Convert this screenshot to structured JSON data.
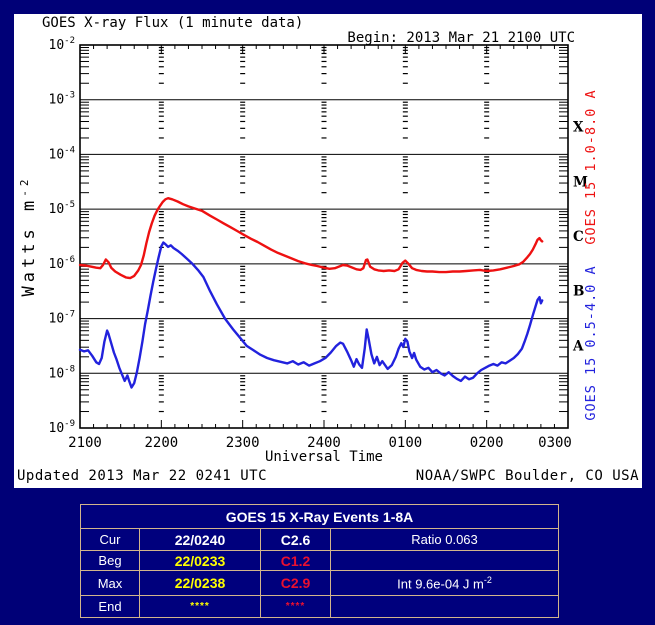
{
  "colors": {
    "page_bg": "#000077",
    "panel_bg": "#ffffff",
    "axis": "#000000",
    "long_channel_red": "#ee1111",
    "short_channel_blue": "#2222dd",
    "table_border_tan": "#d2b48c",
    "table_bg": "#00007d",
    "event_time_yellow": "#ffff00",
    "event_class_red": "#ea1030",
    "table_text_white": "#ffffff"
  },
  "chart_data": {
    "type": "line",
    "title": "GOES X-ray Flux (1 minute data)",
    "begin_label": "Begin: 2013 Mar 21 2100 UTC",
    "xlabel": "Universal Time",
    "ylabel_main": "Watts m",
    "ylabel_exp": "-2",
    "y_unit": "W m^-2, log scale",
    "x_tick_labels": [
      "2100",
      "2200",
      "2300",
      "2400",
      "0100",
      "0200",
      "0300"
    ],
    "x_total_minutes": 360,
    "y_log_max": -2,
    "y_log_min": -9,
    "y_exponents": [
      -2,
      -3,
      -4,
      -5,
      -6,
      -7,
      -8,
      -9
    ],
    "grid": "horizontal solid decade lines, dashed vertical hour lines",
    "flare_class_letters": [
      {
        "label": "X",
        "log_mid": -3.5
      },
      {
        "label": "M",
        "log_mid": -4.5
      },
      {
        "label": "C",
        "log_mid": -5.5
      },
      {
        "label": "B",
        "log_mid": -6.5
      },
      {
        "label": "A",
        "log_mid": -7.5
      }
    ],
    "series": [
      {
        "name": "GOES 15 1.0-8.0 A",
        "color": "#ee1111",
        "points_minutes_vs_log10flux": [
          [
            0,
            -6.02
          ],
          [
            4,
            -6.03
          ],
          [
            8,
            -6.05
          ],
          [
            12,
            -6.07
          ],
          [
            15,
            -6.08
          ],
          [
            17,
            -6.02
          ],
          [
            19,
            -5.92
          ],
          [
            21,
            -5.97
          ],
          [
            23,
            -6.07
          ],
          [
            26,
            -6.14
          ],
          [
            30,
            -6.2
          ],
          [
            34,
            -6.25
          ],
          [
            37,
            -6.26
          ],
          [
            40,
            -6.22
          ],
          [
            43,
            -6.12
          ],
          [
            45,
            -6.02
          ],
          [
            47,
            -5.85
          ],
          [
            49,
            -5.62
          ],
          [
            51,
            -5.42
          ],
          [
            53,
            -5.26
          ],
          [
            55,
            -5.12
          ],
          [
            57,
            -5.02
          ],
          [
            59,
            -4.94
          ],
          [
            61,
            -4.87
          ],
          [
            63,
            -4.82
          ],
          [
            65,
            -4.8
          ],
          [
            68,
            -4.82
          ],
          [
            72,
            -4.86
          ],
          [
            76,
            -4.91
          ],
          [
            80,
            -4.95
          ],
          [
            85,
            -4.99
          ],
          [
            90,
            -5.03
          ],
          [
            96,
            -5.12
          ],
          [
            101,
            -5.19
          ],
          [
            106,
            -5.26
          ],
          [
            111,
            -5.33
          ],
          [
            116,
            -5.4
          ],
          [
            121,
            -5.47
          ],
          [
            126,
            -5.54
          ],
          [
            131,
            -5.6
          ],
          [
            136,
            -5.67
          ],
          [
            141,
            -5.74
          ],
          [
            146,
            -5.8
          ],
          [
            151,
            -5.85
          ],
          [
            156,
            -5.9
          ],
          [
            161,
            -5.95
          ],
          [
            166,
            -5.99
          ],
          [
            171,
            -6.02
          ],
          [
            175,
            -6.04
          ],
          [
            180,
            -6.07
          ],
          [
            184,
            -6.09
          ],
          [
            188,
            -6.08
          ],
          [
            191,
            -6.05
          ],
          [
            194,
            -6.02
          ],
          [
            197,
            -6.03
          ],
          [
            200,
            -6.06
          ],
          [
            204,
            -6.1
          ],
          [
            207,
            -6.11
          ],
          [
            209,
            -6.08
          ],
          [
            211,
            -5.93
          ],
          [
            212,
            -5.92
          ],
          [
            214,
            -6.05
          ],
          [
            217,
            -6.1
          ],
          [
            220,
            -6.12
          ],
          [
            224,
            -6.13
          ],
          [
            228,
            -6.12
          ],
          [
            232,
            -6.13
          ],
          [
            235,
            -6.1
          ],
          [
            238,
            -5.98
          ],
          [
            240,
            -5.94
          ],
          [
            242,
            -5.99
          ],
          [
            245,
            -6.08
          ],
          [
            248,
            -6.11
          ],
          [
            252,
            -6.13
          ],
          [
            256,
            -6.14
          ],
          [
            260,
            -6.14
          ],
          [
            265,
            -6.15
          ],
          [
            270,
            -6.15
          ],
          [
            275,
            -6.14
          ],
          [
            280,
            -6.14
          ],
          [
            285,
            -6.13
          ],
          [
            290,
            -6.12
          ],
          [
            295,
            -6.11
          ],
          [
            300,
            -6.13
          ],
          [
            305,
            -6.12
          ],
          [
            310,
            -6.1
          ],
          [
            315,
            -6.07
          ],
          [
            320,
            -6.04
          ],
          [
            324,
            -6.01
          ],
          [
            327,
            -5.96
          ],
          [
            330,
            -5.88
          ],
          [
            332,
            -5.82
          ],
          [
            334,
            -5.74
          ],
          [
            336,
            -5.64
          ],
          [
            337.5,
            -5.56
          ],
          [
            339,
            -5.53
          ],
          [
            340,
            -5.57
          ],
          [
            341,
            -5.59
          ]
        ]
      },
      {
        "name": "GOES 15 0.5-4.0 A",
        "color": "#2222dd",
        "points_minutes_vs_log10flux": [
          [
            0,
            -7.57
          ],
          [
            3,
            -7.6
          ],
          [
            6,
            -7.58
          ],
          [
            9,
            -7.68
          ],
          [
            12,
            -7.8
          ],
          [
            14,
            -7.83
          ],
          [
            16,
            -7.72
          ],
          [
            18,
            -7.42
          ],
          [
            20,
            -7.22
          ],
          [
            21,
            -7.28
          ],
          [
            23,
            -7.45
          ],
          [
            25,
            -7.62
          ],
          [
            27,
            -7.75
          ],
          [
            29,
            -7.9
          ],
          [
            31,
            -8.02
          ],
          [
            33,
            -8.14
          ],
          [
            35,
            -8.04
          ],
          [
            36,
            -8.12
          ],
          [
            38,
            -8.26
          ],
          [
            40,
            -8.18
          ],
          [
            42,
            -7.98
          ],
          [
            44,
            -7.72
          ],
          [
            46,
            -7.42
          ],
          [
            48,
            -7.1
          ],
          [
            50,
            -6.85
          ],
          [
            52,
            -6.58
          ],
          [
            54,
            -6.33
          ],
          [
            56,
            -6.1
          ],
          [
            58,
            -5.88
          ],
          [
            60,
            -5.68
          ],
          [
            61.5,
            -5.61
          ],
          [
            63,
            -5.64
          ],
          [
            65,
            -5.69
          ],
          [
            67,
            -5.66
          ],
          [
            69,
            -5.71
          ],
          [
            72,
            -5.76
          ],
          [
            75,
            -5.82
          ],
          [
            79,
            -5.91
          ],
          [
            83,
            -6
          ],
          [
            87,
            -6.11
          ],
          [
            91,
            -6.24
          ],
          [
            96,
            -6.5
          ],
          [
            101,
            -6.74
          ],
          [
            107,
            -7
          ],
          [
            113,
            -7.2
          ],
          [
            118,
            -7.35
          ],
          [
            123,
            -7.5
          ],
          [
            128,
            -7.58
          ],
          [
            133,
            -7.66
          ],
          [
            138,
            -7.72
          ],
          [
            143,
            -7.76
          ],
          [
            148,
            -7.79
          ],
          [
            153,
            -7.82
          ],
          [
            157,
            -7.78
          ],
          [
            161,
            -7.84
          ],
          [
            165,
            -7.8
          ],
          [
            169,
            -7.86
          ],
          [
            173,
            -7.82
          ],
          [
            177,
            -7.78
          ],
          [
            181,
            -7.72
          ],
          [
            185,
            -7.62
          ],
          [
            189,
            -7.5
          ],
          [
            192,
            -7.44
          ],
          [
            194,
            -7.46
          ],
          [
            197,
            -7.6
          ],
          [
            200,
            -7.76
          ],
          [
            202,
            -7.88
          ],
          [
            204,
            -7.74
          ],
          [
            206,
            -7.84
          ],
          [
            208,
            -7.9
          ],
          [
            210,
            -7.55
          ],
          [
            211.5,
            -7.2
          ],
          [
            213,
            -7.38
          ],
          [
            215,
            -7.65
          ],
          [
            217,
            -7.82
          ],
          [
            219,
            -7.7
          ],
          [
            221,
            -7.85
          ],
          [
            223,
            -7.78
          ],
          [
            225,
            -7.85
          ],
          [
            227,
            -7.92
          ],
          [
            230,
            -7.85
          ],
          [
            233,
            -7.7
          ],
          [
            235,
            -7.55
          ],
          [
            237,
            -7.45
          ],
          [
            238.5,
            -7.52
          ],
          [
            240,
            -7.37
          ],
          [
            241.5,
            -7.42
          ],
          [
            243,
            -7.6
          ],
          [
            245,
            -7.72
          ],
          [
            246.5,
            -7.63
          ],
          [
            248,
            -7.75
          ],
          [
            251,
            -7.88
          ],
          [
            254,
            -7.93
          ],
          [
            257,
            -7.9
          ],
          [
            260,
            -7.98
          ],
          [
            263,
            -7.94
          ],
          [
            266,
            -8
          ],
          [
            269,
            -8.04
          ],
          [
            272,
            -7.98
          ],
          [
            275,
            -8.05
          ],
          [
            278,
            -8.1
          ],
          [
            281,
            -8.14
          ],
          [
            284,
            -8.06
          ],
          [
            287,
            -8.11
          ],
          [
            290,
            -8.08
          ],
          [
            293,
            -8
          ],
          [
            296,
            -7.94
          ],
          [
            299,
            -7.9
          ],
          [
            302,
            -7.86
          ],
          [
            305,
            -7.83
          ],
          [
            308,
            -7.86
          ],
          [
            311,
            -7.8
          ],
          [
            314,
            -7.82
          ],
          [
            317,
            -7.77
          ],
          [
            320,
            -7.72
          ],
          [
            323,
            -7.65
          ],
          [
            326,
            -7.55
          ],
          [
            328,
            -7.42
          ],
          [
            330,
            -7.28
          ],
          [
            332,
            -7.12
          ],
          [
            334,
            -6.94
          ],
          [
            336,
            -6.78
          ],
          [
            337.5,
            -6.66
          ],
          [
            339,
            -6.61
          ],
          [
            340,
            -6.72
          ],
          [
            341,
            -6.67
          ]
        ]
      }
    ]
  },
  "footer": {
    "updated": "Updated 2013 Mar 22 0241 UTC",
    "credit": "NOAA/SWPC Boulder, CO USA"
  },
  "events_table": {
    "title": "GOES 15 X-Ray Events 1-8A",
    "rows": [
      {
        "label": "Cur",
        "time": "22/0240",
        "time_color": "#ffffff",
        "xclass": "C2.6",
        "class_color": "#ffffff",
        "note_main": "Ratio 0.063",
        "note_sup": ""
      },
      {
        "label": "Beg",
        "time": "22/0233",
        "time_color": "#ffff00",
        "xclass": "C1.2",
        "class_color": "#ea1030",
        "note_main": "",
        "note_sup": ""
      },
      {
        "label": "Max",
        "time": "22/0238",
        "time_color": "#ffff00",
        "xclass": "C2.9",
        "class_color": "#ea1030",
        "note_main": "Int 9.6e-04 J m",
        "note_sup": "-2"
      },
      {
        "label": "End",
        "time": "****",
        "time_color": "#ffff00",
        "xclass": "****",
        "class_color": "#ea1030",
        "note_main": "",
        "note_sup": ""
      }
    ]
  }
}
